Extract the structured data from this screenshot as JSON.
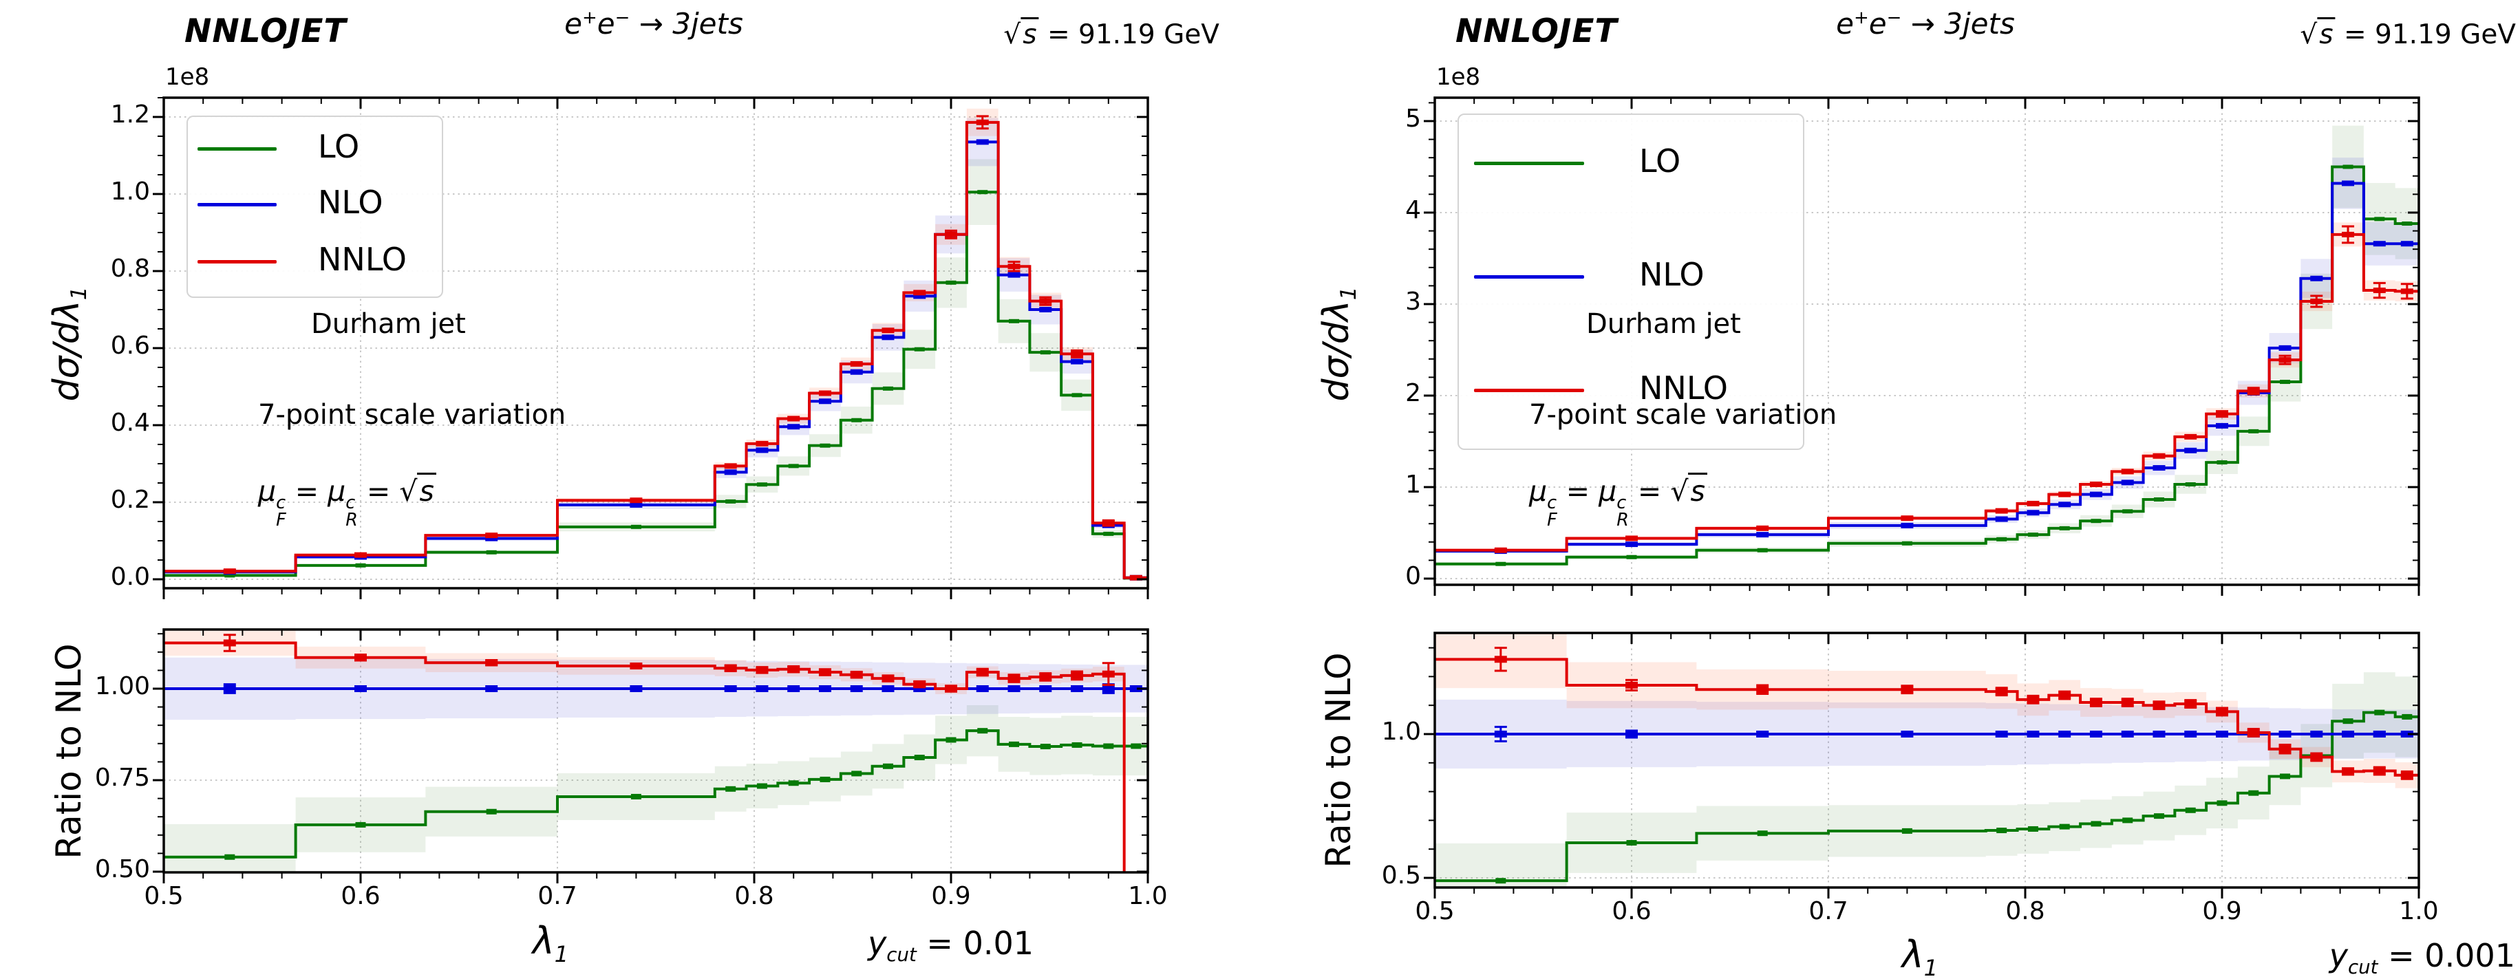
{
  "shared": {
    "watermark": "NNLOJET",
    "title": {
      "e1": "e",
      "sup1": "+",
      "e2": "e",
      "sup2": "−",
      "rest": " → 3jets"
    },
    "energy": {
      "root": "√",
      "s": "s",
      "rest": " = 91.19 GeV"
    },
    "offset_label": "1e8",
    "legend": [
      "LO",
      "NLO",
      "NNLO"
    ],
    "ylabel_main": {
      "pre": "dσ/dλ",
      "sub": "1"
    },
    "ylabel_ratio": "Ratio to NLO",
    "xlabel": {
      "sym": "λ",
      "sub": "1"
    },
    "annotations": {
      "line1": "Durham jet",
      "line2": "7-point scale variation",
      "mu": {
        "sym1": "μ",
        "sup1": "c",
        "sub1": "F",
        "eq1": " = ",
        "sym2": "μ",
        "sup2": "c",
        "sub2": "R",
        "eq2": " = ",
        "root": "√",
        "s": "s"
      }
    },
    "colors": {
      "LO": "#067a06",
      "NLO": "#0000dd",
      "NNLO": "#e00000"
    }
  },
  "figures": [
    {
      "id": "left",
      "ycut": {
        "sym": "y",
        "sub": "cut",
        "eq": " = ",
        "val": "0.01"
      }
    },
    {
      "id": "right",
      "ycut": {
        "sym": "y",
        "sub": "cut",
        "eq": " = ",
        "val": "0.001"
      }
    }
  ],
  "chart_data": [
    {
      "figure": "left",
      "panel": "main",
      "type": "line",
      "variant": "step-histogram",
      "title": "e+e- -> 3jets",
      "watermark": "NNLOJET",
      "energy": "sqrt(s) = 91.19 GeV",
      "ylabel": "dsigma/dlambda1",
      "unit_offset": "1e8",
      "legend_position": "upper left",
      "xlim": [
        0.5,
        1.0
      ],
      "ylim": [
        -0.023,
        1.25
      ],
      "xticks": [
        0.5,
        0.6,
        0.7,
        0.8,
        0.9,
        1.0
      ],
      "yticks": [
        {
          "v": 0.0,
          "l": "0.0"
        },
        {
          "v": 0.2,
          "l": "0.2"
        },
        {
          "v": 0.4,
          "l": "0.4"
        },
        {
          "v": 0.6,
          "l": "0.6"
        },
        {
          "v": 0.8,
          "l": "0.8"
        },
        {
          "v": 1.0,
          "l": "1.0"
        },
        {
          "v": 1.2,
          "l": "1.2"
        }
      ],
      "edges": [
        0.5,
        0.567,
        0.633,
        0.7,
        0.78,
        0.796,
        0.812,
        0.828,
        0.844,
        0.86,
        0.876,
        0.892,
        0.908,
        0.924,
        0.94,
        0.956,
        0.972,
        0.988,
        1.0
      ],
      "annotations": [
        "Durham jet",
        "7-point scale variation",
        "muF^c = muR^c = sqrt(s)"
      ],
      "series": [
        {
          "name": "LO",
          "color": "#067a06",
          "band_color": "rgba(90,150,80,0.13)",
          "band_pct": 0.085,
          "values": [
            0.01,
            0.036,
            0.07,
            0.136,
            0.202,
            0.246,
            0.294,
            0.347,
            0.413,
            0.495,
            0.597,
            0.77,
            1.005,
            0.67,
            0.589,
            0.478,
            0.118,
            0.003
          ]
        },
        {
          "name": "NLO",
          "color": "#0000dd",
          "band_color": "rgba(70,70,205,0.13)",
          "band_pct": 0.055,
          "values": [
            0.019,
            0.058,
            0.106,
            0.193,
            0.278,
            0.335,
            0.396,
            0.462,
            0.538,
            0.628,
            0.735,
            0.895,
            1.135,
            0.79,
            0.7,
            0.565,
            0.14,
            0.004
          ]
        },
        {
          "name": "NNLO",
          "color": "#e00000",
          "band_color": "rgba(255,90,40,0.13)",
          "band_pct": 0.03,
          "values": [
            0.021,
            0.063,
            0.114,
            0.205,
            0.294,
            0.352,
            0.417,
            0.483,
            0.559,
            0.646,
            0.744,
            0.895,
            1.186,
            0.812,
            0.722,
            0.585,
            0.146,
            0.004
          ],
          "err": [
            0,
            0,
            0,
            0,
            0,
            0,
            0,
            0,
            0,
            0,
            0,
            0.01,
            0.016,
            0.012,
            0.01,
            0.009,
            0.007,
            0
          ]
        }
      ]
    },
    {
      "figure": "left",
      "panel": "ratio",
      "type": "line",
      "variant": "step-histogram",
      "ylabel": "Ratio to NLO",
      "xlabel": "lambda1",
      "corner_label": "y_cut = 0.01",
      "xlim": [
        0.5,
        1.0
      ],
      "ylim": [
        0.498,
        1.162
      ],
      "xticks": [
        {
          "v": 0.5,
          "l": "0.5"
        },
        {
          "v": 0.6,
          "l": "0.6"
        },
        {
          "v": 0.7,
          "l": "0.7"
        },
        {
          "v": 0.8,
          "l": "0.8"
        },
        {
          "v": 0.9,
          "l": "0.9"
        },
        {
          "v": 1.0,
          "l": "1.0"
        }
      ],
      "yticks": [
        {
          "v": 0.5,
          "l": "0.50"
        },
        {
          "v": 0.75,
          "l": "0.75"
        },
        {
          "v": 1.0,
          "l": "1.00"
        }
      ],
      "edges": [
        0.5,
        0.567,
        0.633,
        0.7,
        0.78,
        0.796,
        0.812,
        0.828,
        0.844,
        0.86,
        0.876,
        0.892,
        0.908,
        0.924,
        0.94,
        0.956,
        0.972,
        0.988,
        1.0
      ],
      "series": [
        {
          "name": "LO",
          "color": "#067a06",
          "band_color": "rgba(90,150,80,0.13)",
          "values": [
            0.54,
            0.628,
            0.664,
            0.705,
            0.726,
            0.734,
            0.742,
            0.752,
            0.768,
            0.788,
            0.812,
            0.86,
            0.885,
            0.848,
            0.842,
            0.846,
            0.843,
            0.843
          ],
          "band": [
            0.09,
            0.075,
            0.068,
            0.064,
            0.062,
            0.061,
            0.06,
            0.06,
            0.06,
            0.061,
            0.063,
            0.066,
            0.07,
            0.075,
            0.078,
            0.08,
            0.08,
            0.08
          ]
        },
        {
          "name": "NLO",
          "color": "#0000dd",
          "band_color": "rgba(70,70,205,0.13)",
          "values": [
            1,
            1,
            1,
            1,
            1,
            1,
            1,
            1,
            1,
            1,
            1,
            1,
            1,
            1,
            1,
            1,
            1,
            1
          ],
          "band": [
            0.085,
            0.083,
            0.081,
            0.079,
            0.077,
            0.076,
            0.075,
            0.074,
            0.073,
            0.072,
            0.071,
            0.07,
            0.069,
            0.068,
            0.067,
            0.066,
            0.065,
            0.065
          ],
          "err": [
            0.012,
            0,
            0,
            0,
            0,
            0,
            0,
            0,
            0,
            0,
            0,
            0,
            0,
            0,
            0,
            0,
            0.012,
            0
          ]
        },
        {
          "name": "NNLO",
          "color": "#e00000",
          "band_color": "rgba(255,90,40,0.13)",
          "drop_to_bottom": true,
          "values": [
            1.125,
            1.085,
            1.071,
            1.062,
            1.056,
            1.051,
            1.053,
            1.045,
            1.038,
            1.028,
            1.012,
            1.0,
            1.045,
            1.028,
            1.032,
            1.036,
            1.04,
            null
          ],
          "band": [
            0.035,
            0.03,
            0.026,
            0.024,
            0.022,
            0.021,
            0.02,
            0.019,
            0.018,
            0.017,
            0.016,
            0.015,
            0.016,
            0.017,
            0.018,
            0.019,
            0.02,
            0.02
          ],
          "err": [
            0.022,
            0.008,
            0.007,
            0.006,
            0.008,
            0.008,
            0.008,
            0.008,
            0.008,
            0.008,
            0.008,
            0.008,
            0.009,
            0.01,
            0.01,
            0.011,
            0.03,
            0
          ]
        }
      ]
    },
    {
      "figure": "right",
      "panel": "main",
      "type": "line",
      "variant": "step-histogram",
      "title": "e+e- -> 3jets",
      "watermark": "NNLOJET",
      "energy": "sqrt(s) = 91.19 GeV",
      "ylabel": "dsigma/dlambda1",
      "unit_offset": "1e8",
      "legend_position": "upper left",
      "xlim": [
        0.5,
        1.0
      ],
      "ylim": [
        -0.068,
        5.26
      ],
      "xticks": [
        0.5,
        0.6,
        0.7,
        0.8,
        0.9,
        1.0
      ],
      "yticks": [
        {
          "v": 0,
          "l": "0"
        },
        {
          "v": 1,
          "l": "1"
        },
        {
          "v": 2,
          "l": "2"
        },
        {
          "v": 3,
          "l": "3"
        },
        {
          "v": 4,
          "l": "4"
        },
        {
          "v": 5,
          "l": "5"
        }
      ],
      "edges": [
        0.5,
        0.567,
        0.633,
        0.7,
        0.78,
        0.796,
        0.812,
        0.828,
        0.844,
        0.86,
        0.876,
        0.892,
        0.908,
        0.924,
        0.94,
        0.956,
        0.972,
        0.988,
        1.0
      ],
      "annotations": [
        "Durham jet",
        "7-point scale variation",
        "muF^c = muR^c = sqrt(s)"
      ],
      "series": [
        {
          "name": "LO",
          "color": "#067a06",
          "band_color": "rgba(90,150,80,0.13)",
          "band_pct": 0.1,
          "values": [
            0.16,
            0.235,
            0.31,
            0.385,
            0.43,
            0.48,
            0.55,
            0.63,
            0.735,
            0.865,
            1.03,
            1.27,
            1.61,
            2.15,
            3.03,
            4.5,
            3.93,
            3.88
          ]
        },
        {
          "name": "NLO",
          "color": "#0000dd",
          "band_color": "rgba(70,70,205,0.13)",
          "band_pct": 0.065,
          "values": [
            0.3,
            0.375,
            0.48,
            0.58,
            0.65,
            0.72,
            0.81,
            0.92,
            1.05,
            1.21,
            1.4,
            1.67,
            2.03,
            2.52,
            3.28,
            4.32,
            3.66,
            3.66
          ]
        },
        {
          "name": "NNLO",
          "color": "#e00000",
          "band_color": "rgba(255,90,40,0.13)",
          "band_pct": 0.035,
          "values": [
            0.31,
            0.44,
            0.55,
            0.66,
            0.74,
            0.82,
            0.92,
            1.03,
            1.17,
            1.34,
            1.55,
            1.8,
            2.05,
            2.39,
            3.03,
            3.76,
            3.15,
            3.14
          ],
          "err": [
            0,
            0,
            0,
            0,
            0,
            0,
            0,
            0,
            0,
            0,
            0,
            0.03,
            0.035,
            0.045,
            0.06,
            0.09,
            0.08,
            0.08
          ]
        }
      ]
    },
    {
      "figure": "right",
      "panel": "ratio",
      "type": "line",
      "variant": "step-histogram",
      "ylabel": "Ratio to NLO",
      "xlabel": "lambda1",
      "corner_label": "y_cut = 0.001",
      "xlim": [
        0.5,
        1.0
      ],
      "ylim": [
        0.467,
        1.352
      ],
      "xticks": [
        {
          "v": 0.5,
          "l": "0.5"
        },
        {
          "v": 0.6,
          "l": "0.6"
        },
        {
          "v": 0.7,
          "l": "0.7"
        },
        {
          "v": 0.8,
          "l": "0.8"
        },
        {
          "v": 0.9,
          "l": "0.9"
        },
        {
          "v": 1.0,
          "l": "1.0"
        }
      ],
      "yticks": [
        {
          "v": 0.5,
          "l": "0.5"
        },
        {
          "v": 1.0,
          "l": "1.0"
        }
      ],
      "edges": [
        0.5,
        0.567,
        0.633,
        0.7,
        0.78,
        0.796,
        0.812,
        0.828,
        0.844,
        0.86,
        0.876,
        0.892,
        0.908,
        0.924,
        0.94,
        0.956,
        0.972,
        0.988,
        1.0
      ],
      "series": [
        {
          "name": "LO",
          "color": "#067a06",
          "band_color": "rgba(90,150,80,0.13)",
          "values": [
            0.49,
            0.622,
            0.655,
            0.663,
            0.665,
            0.67,
            0.678,
            0.688,
            0.7,
            0.715,
            0.735,
            0.76,
            0.795,
            0.853,
            0.925,
            1.045,
            1.075,
            1.06
          ],
          "band": [
            0.13,
            0.105,
            0.095,
            0.09,
            0.088,
            0.086,
            0.085,
            0.084,
            0.084,
            0.085,
            0.086,
            0.088,
            0.092,
            0.1,
            0.11,
            0.13,
            0.14,
            0.14
          ]
        },
        {
          "name": "NLO",
          "color": "#0000dd",
          "band_color": "rgba(70,70,205,0.13)",
          "values": [
            1,
            1,
            1,
            1,
            1,
            1,
            1,
            1,
            1,
            1,
            1,
            1,
            1,
            1,
            1,
            1,
            1,
            1
          ],
          "band": [
            0.12,
            0.115,
            0.112,
            0.11,
            0.108,
            0.106,
            0.104,
            0.102,
            0.1,
            0.098,
            0.096,
            0.094,
            0.092,
            0.09,
            0.088,
            0.086,
            0.085,
            0.085
          ],
          "err": [
            0.025,
            0.012,
            0.008,
            0.006,
            0.006,
            0.006,
            0.006,
            0.006,
            0.006,
            0.006,
            0.006,
            0.006,
            0.006,
            0.006,
            0.006,
            0.006,
            0.008,
            0.008
          ]
        },
        {
          "name": "NNLO",
          "color": "#e00000",
          "band_color": "rgba(255,90,40,0.13)",
          "values": [
            1.26,
            1.17,
            1.155,
            1.155,
            1.148,
            1.12,
            1.135,
            1.11,
            1.11,
            1.1,
            1.105,
            1.078,
            1.005,
            0.948,
            0.92,
            0.87,
            0.872,
            0.857
          ],
          "band": [
            0.1,
            0.08,
            0.07,
            0.065,
            0.06,
            0.056,
            0.053,
            0.05,
            0.047,
            0.044,
            0.041,
            0.038,
            0.035,
            0.034,
            0.035,
            0.038,
            0.042,
            0.045
          ],
          "err": [
            0.04,
            0.018,
            0.015,
            0.013,
            0.013,
            0.013,
            0.013,
            0.013,
            0.013,
            0.013,
            0.013,
            0.013,
            0.013,
            0.015,
            0.013,
            0.011,
            0.013,
            0.013
          ]
        }
      ]
    }
  ]
}
